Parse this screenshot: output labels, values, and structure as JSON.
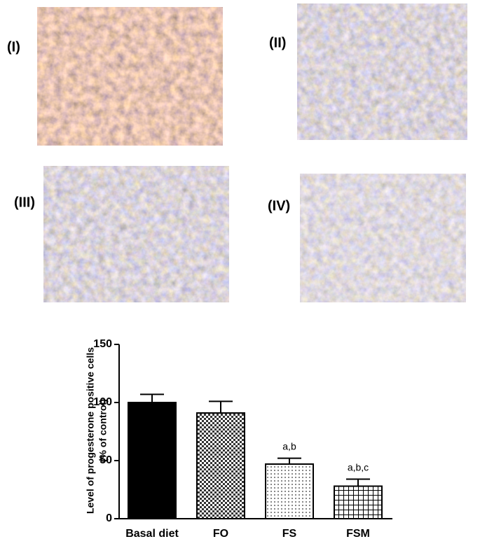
{
  "panels": [
    "(I)",
    "(II)",
    "(III)",
    "(IV)"
  ],
  "chart_data": {
    "type": "bar",
    "y_label": [
      "Level of progesterone positive cells",
      "(% of control)"
    ],
    "categories": [
      "Basal diet",
      "FO",
      "FS",
      "FSM"
    ],
    "values": [
      100,
      91,
      47,
      28
    ],
    "errors": [
      7,
      10,
      5,
      6
    ],
    "annotations": [
      {
        "category": "FS",
        "text": "a,b"
      },
      {
        "category": "FSM",
        "text": "a,b,c"
      }
    ],
    "ylim": [
      0,
      150
    ],
    "yticks": [
      0,
      50,
      100,
      150
    ]
  }
}
